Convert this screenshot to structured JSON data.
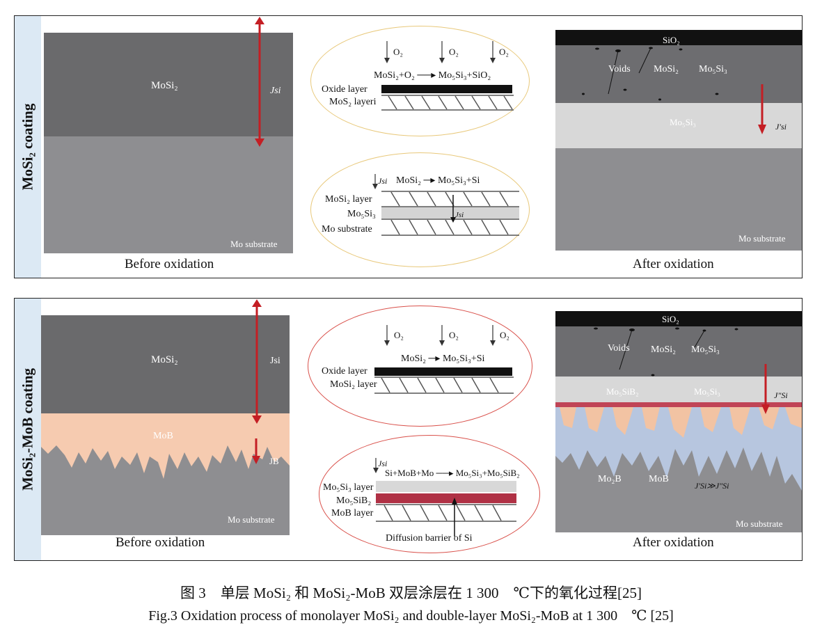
{
  "top": {
    "side_label": "MoSi₂ coating",
    "before": {
      "mosi2": "MoSi₂",
      "jsi": "Jsi",
      "substrate": "Mo substrate",
      "caption": "Before oxidation"
    },
    "oval1": {
      "o2": "O₂",
      "reaction": "MoSi₂+O₂ ──▸ Mo₅Si₃+SiO₂",
      "oxide_layer": "Oxide layer",
      "mos2_layer": "MoS₂ layeri"
    },
    "oval2": {
      "jsi": "Jsi",
      "reaction": "MoSi₂ ─▸ Mo₅Si₃+Si",
      "mosi2_layer": "MoSi₂ layer",
      "mo5si3": "Mo₅Si₃",
      "jsi_inner": "Jsi",
      "substrate": "Mo substrate"
    },
    "after": {
      "sio2": "SiO₂",
      "voids": "Voids",
      "mosi2": "MoSi₂",
      "mo5si3": "Mo₅Si₃",
      "mo5si3_band": "Mo₅Si₃",
      "jsi_prime": "J′si",
      "substrate": "Mo substrate",
      "caption": "After oxidation"
    }
  },
  "bottom": {
    "side_label": "MoSi₂-MoB coating",
    "before": {
      "mosi2": "MoSi₂",
      "jsi": "Jsi",
      "mob": "MoB",
      "jb": "JB",
      "substrate": "Mo substrate",
      "caption": "Before oxidation"
    },
    "oval1": {
      "o2": "O₂",
      "reaction": "MoSi₂ ─▸ Mo₅Si₃+Si",
      "oxide_layer": "Oxide layer",
      "mosi2_layer": "MoSi₂ layer"
    },
    "oval2": {
      "jsi": "Jsi",
      "reaction": "Si+MoB+Mo ──▸ Mo₅Si₃+Mo₅SiB₂",
      "mo5si3_layer": "Mo₅Si₃ layer",
      "mo5sib2": "Mo₅SiB₂",
      "mob_layer": "MoB layer",
      "barrier": "Diffusion barrier of Si"
    },
    "after": {
      "sio2": "SiO₂",
      "voids": "Voids",
      "mosi2": "MoSi₂",
      "mo5si3": "Mo₅Si₃",
      "mo5sib2": "Mo₅SiB₂",
      "mo5si3_band": "Mo₅Si₃",
      "jsi_dprime": "J″Si",
      "mo2b": "Mo₂B",
      "mob": "MoB",
      "relation": "J′Si≫J″Si",
      "substrate": "Mo substrate",
      "caption": "After oxidation"
    }
  },
  "figure_caption": {
    "zh": "图 3　单层 MoSi₂ 和 MoSi₂-MoB 双层涂层在 1 300　℃下的氧化过程[25]",
    "en": "Fig.3  Oxidation process of monolayer MoSi₂  and double-layer MoSi₂-MoB at 1 300　℃ [25]"
  },
  "colors": {
    "mosi2": "#6a6a6c",
    "substrate": "#8e8e91",
    "mob": "#f6cbb0",
    "mo5si3": "#d8d8d8",
    "red": "#c41e24",
    "oval1": "#e8c87a",
    "oval_red": "#d9504a",
    "side": "#dce9f4"
  }
}
